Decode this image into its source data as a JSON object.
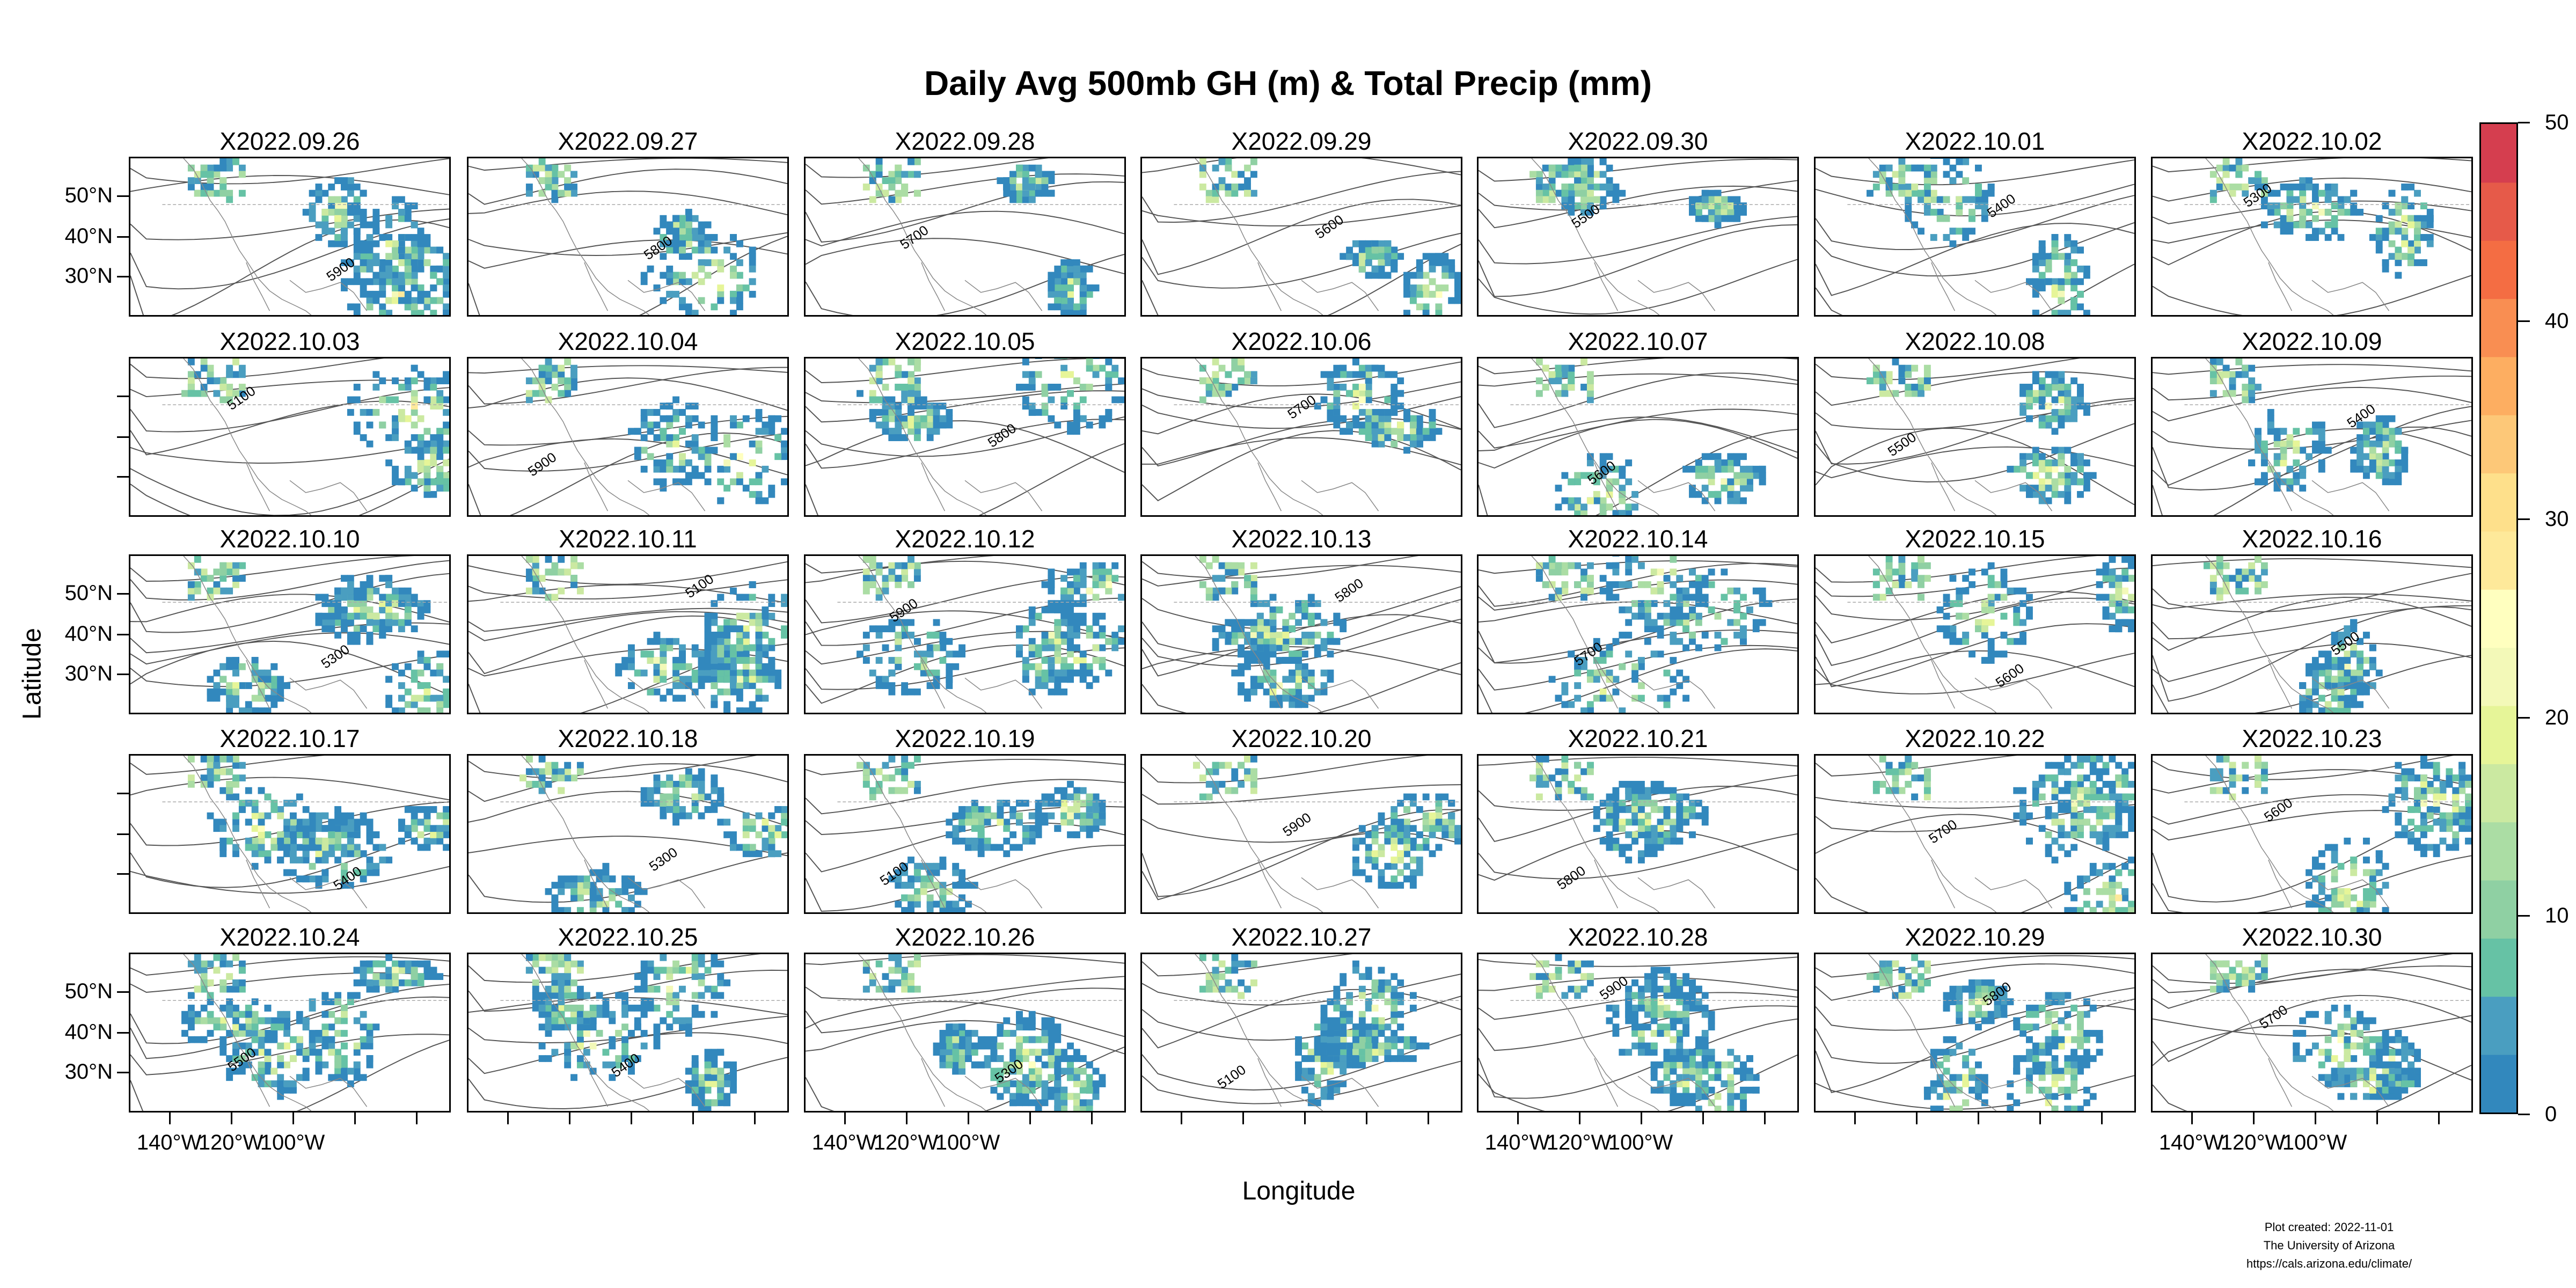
{
  "title": "Daily Avg 500mb GH (m) & Total Precip (mm)",
  "xlabel": "Longitude",
  "ylabel": "Latitude",
  "panels": [
    "X2022.09.26",
    "X2022.09.27",
    "X2022.09.28",
    "X2022.09.29",
    "X2022.09.30",
    "X2022.10.01",
    "X2022.10.02",
    "X2022.10.03",
    "X2022.10.04",
    "X2022.10.05",
    "X2022.10.06",
    "X2022.10.07",
    "X2022.10.08",
    "X2022.10.09",
    "X2022.10.10",
    "X2022.10.11",
    "X2022.10.12",
    "X2022.10.13",
    "X2022.10.14",
    "X2022.10.15",
    "X2022.10.16",
    "X2022.10.17",
    "X2022.10.18",
    "X2022.10.19",
    "X2022.10.20",
    "X2022.10.21",
    "X2022.10.22",
    "X2022.10.23",
    "X2022.10.24",
    "X2022.10.25",
    "X2022.10.26",
    "X2022.10.27",
    "X2022.10.28",
    "X2022.10.29",
    "X2022.10.30"
  ],
  "lat_ticks": [
    "50°N",
    "40°N",
    "30°N"
  ],
  "lon_ticks": [
    "140°W",
    "120°W",
    "100°W"
  ],
  "colorbar": {
    "ticks": [
      "0",
      "10",
      "20",
      "30",
      "40",
      "50"
    ],
    "range": [
      0,
      50
    ],
    "colors": [
      "#3288bd",
      "#4a9ec0",
      "#66c2a5",
      "#8fd0a3",
      "#abdda4",
      "#cbe9a1",
      "#e6f598",
      "#f3f9b8",
      "#ffffbf",
      "#fee99a",
      "#fee08b",
      "#fdc878",
      "#fdae61",
      "#f98e52",
      "#f46d43",
      "#e65a49",
      "#d53e4f"
    ]
  },
  "contour_labels": [
    "5900",
    "5800",
    "5700",
    "5600",
    "5500",
    "5400",
    "5300",
    "5100"
  ],
  "footer": {
    "line1": "Plot created: 2022-11-01",
    "line2": "The University of Arizona",
    "line3": "https://cals.arizona.edu/climate/"
  }
}
